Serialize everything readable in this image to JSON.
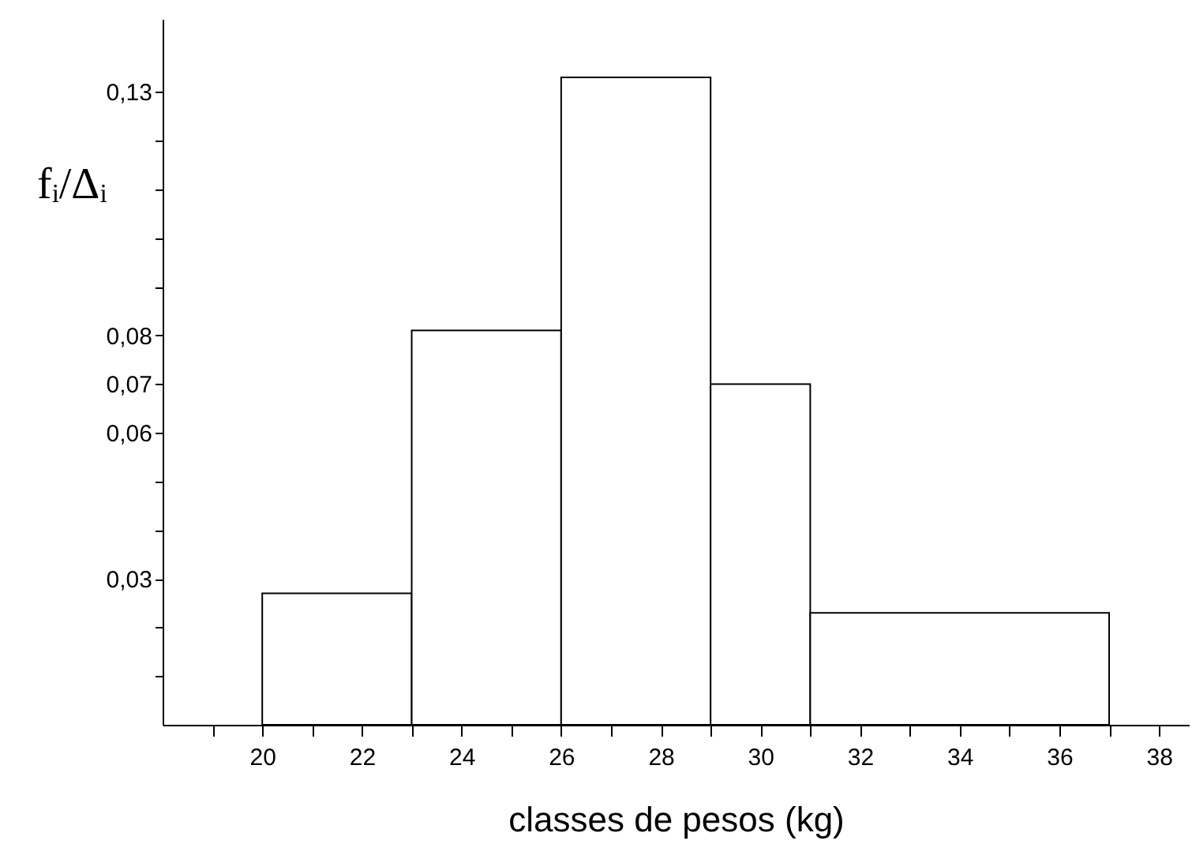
{
  "chart_data": {
    "type": "histogram",
    "xlabel": "classes de pesos (kg)",
    "ylabel": "fᵢ/Δᵢ",
    "bins": [
      20,
      23,
      26,
      29,
      31,
      37
    ],
    "values": [
      0.027,
      0.081,
      0.133,
      0.07,
      0.023
    ],
    "color": "#000000",
    "xlim": [
      18,
      38.6
    ],
    "xticks": [
      {
        "value": 19,
        "label": null
      },
      20,
      {
        "value": 21,
        "label": null
      },
      22,
      {
        "value": 23,
        "label": null
      },
      24,
      {
        "value": 25,
        "label": null
      },
      26,
      {
        "value": 27,
        "label": null
      },
      28,
      {
        "value": 29,
        "label": null
      },
      30,
      {
        "value": 31,
        "label": null
      },
      32,
      {
        "value": 33,
        "label": null
      },
      34,
      {
        "value": 35,
        "label": null
      },
      36,
      {
        "value": 37,
        "label": null
      },
      38
    ],
    "ylim": [
      0,
      0.145
    ],
    "yticks": [
      {
        "value": 0.01,
        "label": null
      },
      {
        "value": 0.02,
        "label": null
      },
      {
        "value": 0.03,
        "label": "0,03"
      },
      {
        "value": 0.04,
        "label": null
      },
      {
        "value": 0.05,
        "label": null
      },
      {
        "value": 0.06,
        "label": "0,06"
      },
      {
        "value": 0.07,
        "label": "0,07"
      },
      {
        "value": 0.08,
        "label": "0,08"
      },
      {
        "value": 0.09,
        "label": null
      },
      {
        "value": 0.1,
        "label": null
      },
      {
        "value": 0.11,
        "label": null
      },
      {
        "value": 0.12,
        "label": null
      },
      {
        "value": 0.13,
        "label": "0,13"
      }
    ],
    "grid": false
  }
}
